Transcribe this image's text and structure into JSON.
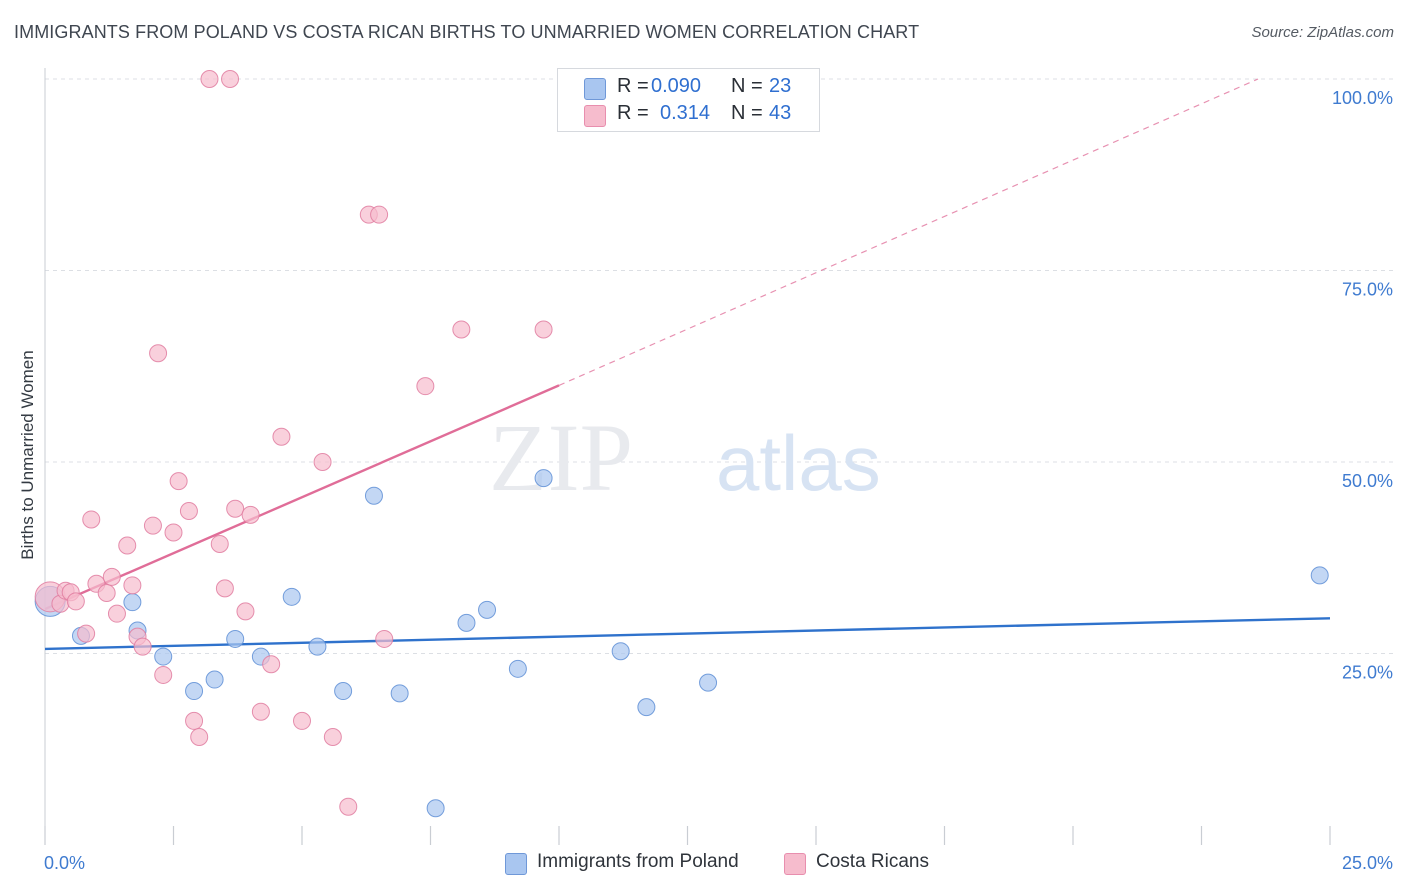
{
  "title": "IMMIGRANTS FROM POLAND VS COSTA RICAN BIRTHS TO UNMARRIED WOMEN CORRELATION CHART",
  "source": "Source: ZipAtlas.com",
  "watermark": {
    "zip": "ZIP",
    "atlas": "atlas"
  },
  "colors": {
    "poland_fill": "#a9c6f0",
    "poland_stroke": "#5f8fd6",
    "poland_line": "#2f72cc",
    "costa_fill": "#f6bccd",
    "costa_stroke": "#e07ca0",
    "costa_line": "#e06d98",
    "axis_text": "#3f7bd0",
    "grid": "#dcdfe4"
  },
  "legend": {
    "poland": {
      "r_label": "R =",
      "r_value": "0.090",
      "n_label": "N =",
      "n_value": "23"
    },
    "costa": {
      "r_label": "R =",
      "r_value": "0.314",
      "n_label": "N =",
      "n_value": "43"
    }
  },
  "bottom_legend": {
    "poland": "Immigrants from Poland",
    "costa": "Costa Ricans"
  },
  "chart_data": {
    "type": "scatter",
    "title": "IMMIGRANTS FROM POLAND VS COSTA RICAN BIRTHS TO UNMARRIED WOMEN CORRELATION CHART",
    "xlabel": "",
    "ylabel": "Births to Unmarried Women",
    "xlim": [
      0,
      25
    ],
    "ylim": [
      0,
      100
    ],
    "x_ticks": [
      "0.0%",
      "25.0%"
    ],
    "y_ticks": [
      "25.0%",
      "50.0%",
      "75.0%",
      "100.0%"
    ],
    "y_tick_values": [
      25,
      50,
      75,
      100
    ],
    "grid": true,
    "legend_position": "top-center",
    "series": [
      {
        "name": "Immigrants from Poland",
        "r": 0.09,
        "n": 23,
        "points": [
          {
            "x": 0.1,
            "y": 31.8,
            "size": "large"
          },
          {
            "x": 0.7,
            "y": 27.3
          },
          {
            "x": 1.7,
            "y": 31.7
          },
          {
            "x": 1.8,
            "y": 28.0
          },
          {
            "x": 2.3,
            "y": 24.6
          },
          {
            "x": 2.9,
            "y": 20.1
          },
          {
            "x": 3.3,
            "y": 21.6
          },
          {
            "x": 3.7,
            "y": 26.9
          },
          {
            "x": 4.2,
            "y": 24.6
          },
          {
            "x": 4.8,
            "y": 32.4
          },
          {
            "x": 5.3,
            "y": 25.9
          },
          {
            "x": 5.8,
            "y": 20.1
          },
          {
            "x": 6.4,
            "y": 45.6
          },
          {
            "x": 6.9,
            "y": 19.8
          },
          {
            "x": 7.6,
            "y": 4.8
          },
          {
            "x": 8.2,
            "y": 29.0
          },
          {
            "x": 8.6,
            "y": 30.7
          },
          {
            "x": 9.2,
            "y": 23.0
          },
          {
            "x": 9.7,
            "y": 47.9
          },
          {
            "x": 11.2,
            "y": 25.3
          },
          {
            "x": 11.7,
            "y": 18.0
          },
          {
            "x": 12.9,
            "y": 21.2
          },
          {
            "x": 24.8,
            "y": 35.2
          }
        ],
        "trend": {
          "x1": 0,
          "y1": 25.6,
          "x2": 25,
          "y2": 29.6
        }
      },
      {
        "name": "Costa Ricans",
        "r": 0.314,
        "n": 43,
        "points": [
          {
            "x": 0.1,
            "y": 32.4,
            "size": "large"
          },
          {
            "x": 0.3,
            "y": 31.5
          },
          {
            "x": 0.4,
            "y": 33.2
          },
          {
            "x": 0.5,
            "y": 33.0
          },
          {
            "x": 0.6,
            "y": 31.8
          },
          {
            "x": 0.8,
            "y": 27.6
          },
          {
            "x": 0.9,
            "y": 42.5
          },
          {
            "x": 1.0,
            "y": 34.1
          },
          {
            "x": 1.2,
            "y": 32.9
          },
          {
            "x": 1.3,
            "y": 35.0
          },
          {
            "x": 1.4,
            "y": 30.2
          },
          {
            "x": 1.6,
            "y": 39.1
          },
          {
            "x": 1.7,
            "y": 33.9
          },
          {
            "x": 1.8,
            "y": 27.2
          },
          {
            "x": 1.9,
            "y": 25.9
          },
          {
            "x": 2.1,
            "y": 41.7
          },
          {
            "x": 2.2,
            "y": 64.2
          },
          {
            "x": 2.3,
            "y": 22.2
          },
          {
            "x": 2.5,
            "y": 40.8
          },
          {
            "x": 2.6,
            "y": 47.5
          },
          {
            "x": 2.8,
            "y": 43.6
          },
          {
            "x": 2.9,
            "y": 16.2
          },
          {
            "x": 3.0,
            "y": 14.1
          },
          {
            "x": 3.2,
            "y": 100.0
          },
          {
            "x": 3.4,
            "y": 39.3
          },
          {
            "x": 3.5,
            "y": 33.5
          },
          {
            "x": 3.6,
            "y": 100.0
          },
          {
            "x": 3.7,
            "y": 43.9
          },
          {
            "x": 3.9,
            "y": 30.5
          },
          {
            "x": 4.0,
            "y": 43.1
          },
          {
            "x": 4.2,
            "y": 17.4
          },
          {
            "x": 4.4,
            "y": 23.6
          },
          {
            "x": 4.6,
            "y": 53.3
          },
          {
            "x": 5.0,
            "y": 16.2
          },
          {
            "x": 5.4,
            "y": 50.0
          },
          {
            "x": 5.6,
            "y": 14.1
          },
          {
            "x": 5.9,
            "y": 5.0
          },
          {
            "x": 6.3,
            "y": 82.3
          },
          {
            "x": 6.5,
            "y": 82.3
          },
          {
            "x": 6.6,
            "y": 26.9
          },
          {
            "x": 7.4,
            "y": 59.9
          },
          {
            "x": 8.1,
            "y": 67.3
          },
          {
            "x": 9.7,
            "y": 67.3
          }
        ],
        "trend": {
          "x1": 0,
          "y1": 30.8,
          "x2": 10,
          "y2": 60.0
        },
        "trend_extended": {
          "x1": 10,
          "y1": 60.0,
          "x2": 23.6,
          "y2": 100.0
        }
      }
    ]
  }
}
